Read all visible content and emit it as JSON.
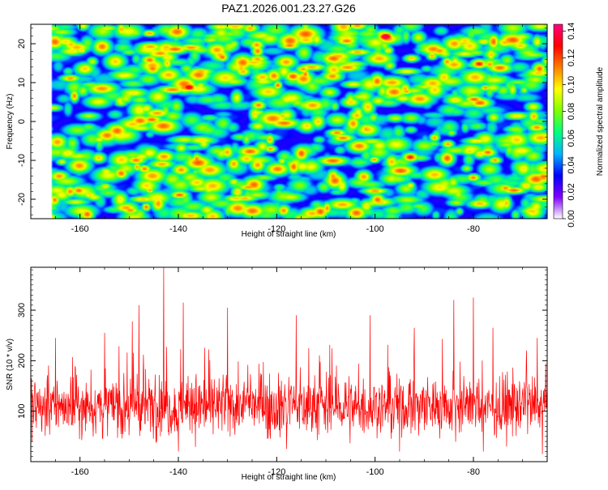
{
  "title": "PAZ1.2026.001.23.27.G26",
  "chart_data": [
    {
      "type": "heatmap",
      "title": "PAZ1.2026.001.23.27.G26",
      "xlabel": "Height of straight line (km)",
      "ylabel": "Frequency (Hz)",
      "xlim": [
        -170,
        -65
      ],
      "ylim": [
        -25,
        25
      ],
      "xticks": [
        -160,
        -140,
        -120,
        -100,
        -80
      ],
      "yticks": [
        -20,
        -10,
        0,
        10,
        20
      ],
      "colorbar": {
        "label": "Normalized spectral amplitude",
        "range": [
          0,
          0.145
        ],
        "ticks": [
          "0.00",
          "0.02",
          "0.04",
          "0.06",
          "0.08",
          "0.10",
          "0.12",
          "0.14"
        ],
        "colors": [
          "#ffffff",
          "#8000ff",
          "#0000ff",
          "#00b4ff",
          "#00ff80",
          "#80ff00",
          "#ffff00",
          "#ff8000",
          "#ff0000",
          "#ff0080"
        ]
      },
      "data_start_x": -166,
      "hotspots": [
        {
          "x": -162,
          "y": 20,
          "v": 0.09
        },
        {
          "x": -149,
          "y": 23,
          "v": 0.07
        },
        {
          "x": -146,
          "y": 16,
          "v": 0.1
        },
        {
          "x": -138,
          "y": 9,
          "v": 0.12
        },
        {
          "x": -130,
          "y": 19,
          "v": 0.07
        },
        {
          "x": -127,
          "y": 13,
          "v": 0.09
        },
        {
          "x": -124,
          "y": -1,
          "v": 0.08
        },
        {
          "x": -116,
          "y": 5,
          "v": 0.07
        },
        {
          "x": -98,
          "y": 22,
          "v": 0.13
        },
        {
          "x": -93,
          "y": -9,
          "v": 0.11
        },
        {
          "x": -79,
          "y": 15,
          "v": 0.11
        },
        {
          "x": -68,
          "y": 4,
          "v": 0.08
        },
        {
          "x": -66,
          "y": -14,
          "v": 0.1
        },
        {
          "x": -139,
          "y": 11,
          "v": 0.06
        },
        {
          "x": -164,
          "y": -6,
          "v": 0.06
        },
        {
          "x": -153,
          "y": 2,
          "v": 0.05
        }
      ]
    },
    {
      "type": "line",
      "xlabel": "Height of straight line (km)",
      "ylabel": "SNR (10 * v/v)",
      "xlim": [
        -170,
        -65
      ],
      "ylim": [
        0,
        385
      ],
      "xticks": [
        -160,
        -140,
        -120,
        -100,
        -80
      ],
      "yticks": [
        100,
        200,
        300
      ],
      "color": "#ff0000",
      "sample_count": 1400,
      "baseline_mean": 110,
      "peaks": [
        {
          "x": -165,
          "y": 245
        },
        {
          "x": -155,
          "y": 255
        },
        {
          "x": -148,
          "y": 310
        },
        {
          "x": -143,
          "y": 385
        },
        {
          "x": -139,
          "y": 315
        },
        {
          "x": -130,
          "y": 305
        },
        {
          "x": -116,
          "y": 290
        },
        {
          "x": -101,
          "y": 290
        },
        {
          "x": -92,
          "y": 265
        },
        {
          "x": -84,
          "y": 320
        },
        {
          "x": -80,
          "y": 325
        },
        {
          "x": -76,
          "y": 265
        },
        {
          "x": -67,
          "y": 245
        }
      ],
      "dips": [
        {
          "x": -140,
          "y": 20
        },
        {
          "x": -118,
          "y": 25
        },
        {
          "x": -95,
          "y": 20
        },
        {
          "x": -78,
          "y": 20
        },
        {
          "x": -66,
          "y": 15
        }
      ]
    }
  ]
}
